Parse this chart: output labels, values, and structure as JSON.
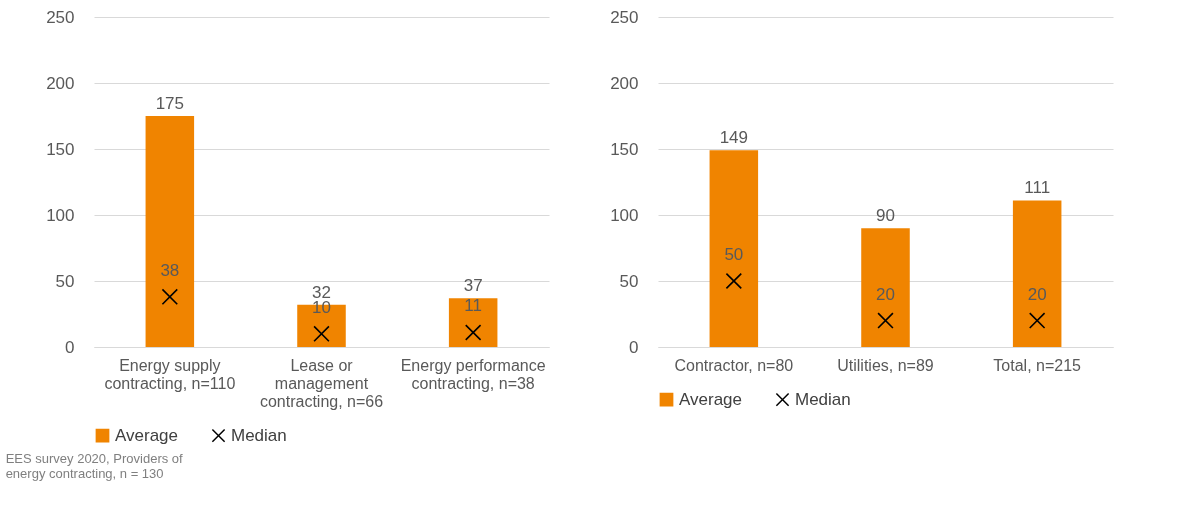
{
  "chart_data": [
    {
      "type": "bar",
      "categories": [
        "Energy supply contracting, n=110",
        "Lease or management contracting, n=66",
        "Energy performance contracting, n=38"
      ],
      "series": [
        {
          "name": "Average",
          "color": "#f08400",
          "values": [
            175,
            32,
            37
          ]
        },
        {
          "name": "Median",
          "type": "scatter",
          "color": "#000000",
          "values": [
            38,
            10,
            11
          ]
        }
      ],
      "ylim": [
        0,
        250
      ],
      "yticks": [
        0,
        50,
        100,
        150,
        200,
        250
      ],
      "grid": "y",
      "legend": "bottom",
      "data_labels": true,
      "marker": "cross",
      "annotations": [
        "EES survey 2020, Providers of energy contracting, n = 130"
      ]
    },
    {
      "type": "bar",
      "categories": [
        "Contractor, n=80",
        "Utilities, n=89",
        "Total, n=215"
      ],
      "series": [
        {
          "name": "Average",
          "color": "#f08400",
          "values": [
            149,
            90,
            111
          ]
        },
        {
          "name": "Median",
          "type": "scatter",
          "color": "#000000",
          "values": [
            50,
            20,
            20
          ]
        }
      ],
      "ylim": [
        0,
        250
      ],
      "yticks": [
        0,
        50,
        100,
        150,
        200,
        250
      ],
      "grid": "y",
      "legend": "bottom",
      "data_labels": true,
      "marker": "cross"
    }
  ]
}
